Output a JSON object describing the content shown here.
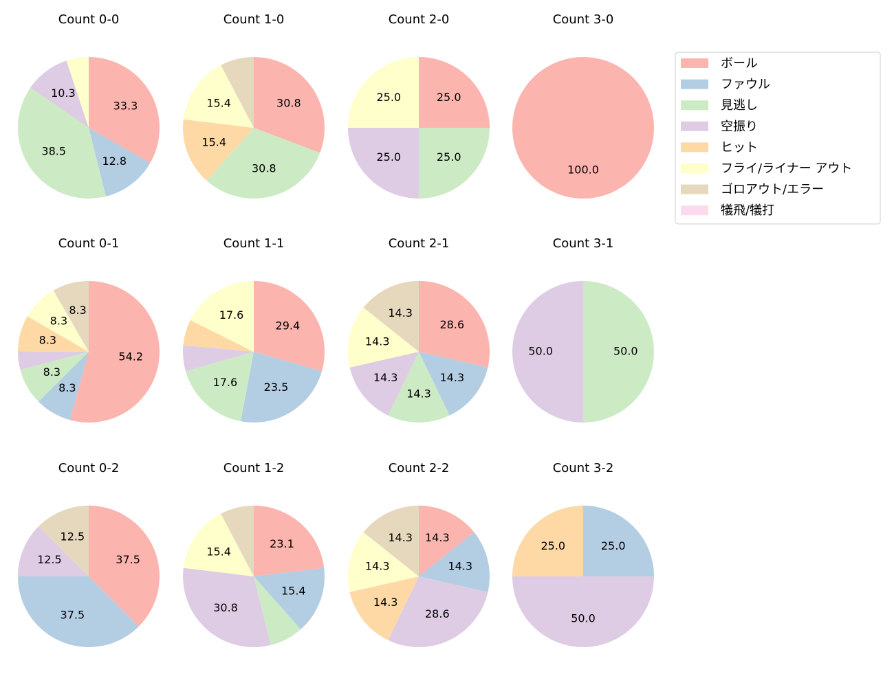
{
  "chart_data": [
    {
      "type": "pie",
      "title": "Count 0-0",
      "values": [
        33.3,
        12.8,
        38.5,
        10.3,
        0,
        5.1,
        0,
        0
      ],
      "value_labels": [
        "33.3",
        "12.8",
        "38.5",
        "10.3",
        null,
        null,
        null,
        null
      ]
    },
    {
      "type": "pie",
      "title": "Count 1-0",
      "values": [
        30.8,
        0,
        30.8,
        0,
        15.4,
        15.4,
        7.7,
        0
      ],
      "value_labels": [
        "30.8",
        null,
        "30.8",
        null,
        "15.4",
        "15.4",
        null,
        null
      ]
    },
    {
      "type": "pie",
      "title": "Count 2-0",
      "values": [
        25,
        0,
        25,
        25,
        0,
        25,
        0,
        0
      ],
      "value_labels": [
        "25.0",
        null,
        "25.0",
        "25.0",
        null,
        "25.0",
        null,
        null
      ]
    },
    {
      "type": "pie",
      "title": "Count 3-0",
      "values": [
        100,
        0,
        0,
        0,
        0,
        0,
        0,
        0
      ],
      "value_labels": [
        "100.0",
        null,
        null,
        null,
        null,
        null,
        null,
        null
      ]
    },
    {
      "type": "pie",
      "title": "Count 0-1",
      "values": [
        54.2,
        8.3,
        8.3,
        4.2,
        8.3,
        8.3,
        8.3,
        0
      ],
      "value_labels": [
        "54.2",
        "8.3",
        "8.3",
        null,
        "8.3",
        "8.3",
        "8.3",
        null
      ]
    },
    {
      "type": "pie",
      "title": "Count 1-1",
      "values": [
        29.4,
        23.5,
        17.6,
        5.9,
        5.9,
        17.6,
        0,
        0
      ],
      "value_labels": [
        "29.4",
        "23.5",
        "17.6",
        null,
        null,
        "17.6",
        null,
        null
      ]
    },
    {
      "type": "pie",
      "title": "Count 2-1",
      "values": [
        28.6,
        14.3,
        14.3,
        14.3,
        0,
        14.3,
        14.3,
        0
      ],
      "value_labels": [
        "28.6",
        "14.3",
        "14.3",
        "14.3",
        null,
        "14.3",
        "14.3",
        null
      ]
    },
    {
      "type": "pie",
      "title": "Count 3-1",
      "values": [
        0,
        0,
        50,
        50,
        0,
        0,
        0,
        0
      ],
      "value_labels": [
        null,
        null,
        "50.0",
        "50.0",
        null,
        null,
        null,
        null
      ]
    },
    {
      "type": "pie",
      "title": "Count 0-2",
      "values": [
        37.5,
        37.5,
        0,
        12.5,
        0,
        0,
        12.5,
        0
      ],
      "value_labels": [
        "37.5",
        "37.5",
        null,
        "12.5",
        null,
        null,
        "12.5",
        null
      ]
    },
    {
      "type": "pie",
      "title": "Count 1-2",
      "values": [
        23.1,
        15.4,
        7.7,
        30.8,
        0,
        15.4,
        7.7,
        0
      ],
      "value_labels": [
        "23.1",
        "15.4",
        null,
        "30.8",
        null,
        "15.4",
        null,
        null
      ]
    },
    {
      "type": "pie",
      "title": "Count 2-2",
      "values": [
        14.3,
        14.3,
        0,
        28.6,
        14.3,
        14.3,
        14.3,
        0
      ],
      "value_labels": [
        "14.3",
        "14.3",
        null,
        "28.6",
        "14.3",
        "14.3",
        "14.3",
        null
      ]
    },
    {
      "type": "pie",
      "title": "Count 3-2",
      "values": [
        0,
        25,
        0,
        50,
        25,
        0,
        0,
        0
      ],
      "value_labels": [
        null,
        "25.0",
        null,
        "50.0",
        "25.0",
        null,
        null,
        null
      ]
    }
  ],
  "legend": {
    "labels": [
      "ボール",
      "ファウル",
      "見逃し",
      "空振り",
      "ヒット",
      "フライ/ライナー アウト",
      "ゴロアウト/エラー",
      "犠飛/犠打"
    ],
    "colors": [
      "#fbb4ae",
      "#b3cde3",
      "#ccebc5",
      "#decbe4",
      "#fed9a6",
      "#ffffcc",
      "#e5d8bd",
      "#fddaec"
    ]
  }
}
